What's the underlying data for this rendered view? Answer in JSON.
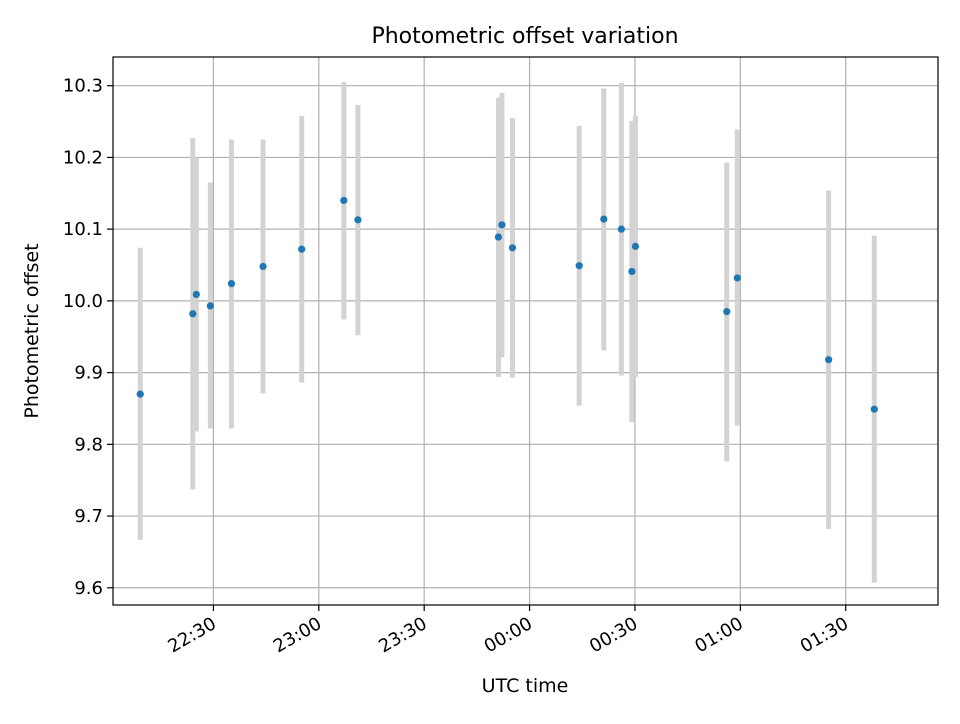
{
  "chart_data": {
    "type": "scatter",
    "title": "Photometric offset variation",
    "xlabel": "UTC time",
    "ylabel": "Photometric offset",
    "x_axis_type": "time",
    "x_ticks": [
      "22:30",
      "23:00",
      "23:30",
      "00:00",
      "00:30",
      "01:00",
      "01:30"
    ],
    "y_ticks": [
      "9.6",
      "9.7",
      "9.8",
      "9.9",
      "10.0",
      "10.1",
      "10.2",
      "10.3"
    ],
    "xlim": [
      "22:01:25",
      "01:56:16"
    ],
    "ylim": [
      9.576,
      10.34
    ],
    "grid": true,
    "legend": "none",
    "colors": {
      "points": "#1f77b4",
      "error_bars": "#d3d3d3",
      "grid": "#b0b0b0",
      "axes": "#000000"
    },
    "points": [
      {
        "time": "22:09:10",
        "y": 9.87,
        "err_low": 9.667,
        "err_high": 10.074
      },
      {
        "time": "22:24:08",
        "y": 9.982,
        "err_low": 9.737,
        "err_high": 10.227
      },
      {
        "time": "22:25:08",
        "y": 10.009,
        "err_low": 9.818,
        "err_high": 10.2
      },
      {
        "time": "22:29:08",
        "y": 9.993,
        "err_low": 9.822,
        "err_high": 10.165
      },
      {
        "time": "22:35:08",
        "y": 10.024,
        "err_low": 9.822,
        "err_high": 10.225
      },
      {
        "time": "22:44:08",
        "y": 10.048,
        "err_low": 9.871,
        "err_high": 10.225
      },
      {
        "time": "22:55:08",
        "y": 10.072,
        "err_low": 9.886,
        "err_high": 10.258
      },
      {
        "time": "23:07:08",
        "y": 10.14,
        "err_low": 9.974,
        "err_high": 10.305
      },
      {
        "time": "23:11:08",
        "y": 10.113,
        "err_low": 9.952,
        "err_high": 10.273
      },
      {
        "time": "23:51:08",
        "y": 10.089,
        "err_low": 9.894,
        "err_high": 10.283
      },
      {
        "time": "23:52:08",
        "y": 10.106,
        "err_low": 9.921,
        "err_high": 10.29
      },
      {
        "time": "23:55:08",
        "y": 10.074,
        "err_low": 9.893,
        "err_high": 10.255
      },
      {
        "time": "00:14:08",
        "y": 10.049,
        "err_low": 9.854,
        "err_high": 10.244
      },
      {
        "time": "00:21:08",
        "y": 10.114,
        "err_low": 9.931,
        "err_high": 10.296
      },
      {
        "time": "00:26:08",
        "y": 10.1,
        "err_low": 9.896,
        "err_high": 10.304
      },
      {
        "time": "00:29:08",
        "y": 10.041,
        "err_low": 9.831,
        "err_high": 10.251
      },
      {
        "time": "00:30:08",
        "y": 10.076,
        "err_low": 9.894,
        "err_high": 10.258
      },
      {
        "time": "00:56:08",
        "y": 9.985,
        "err_low": 9.776,
        "err_high": 10.193
      },
      {
        "time": "00:59:08",
        "y": 10.032,
        "err_low": 9.826,
        "err_high": 10.239
      },
      {
        "time": "01:25:08",
        "y": 9.918,
        "err_low": 9.682,
        "err_high": 10.154
      },
      {
        "time": "01:38:08",
        "y": 9.849,
        "err_low": 9.607,
        "err_high": 10.091
      }
    ]
  }
}
